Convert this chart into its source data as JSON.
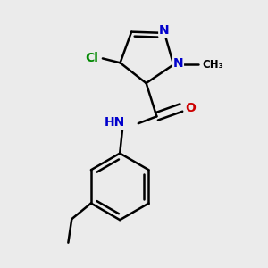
{
  "background_color": "#ebebeb",
  "bond_color": "#000000",
  "bond_width": 1.8,
  "atom_colors": {
    "N": "#0000cc",
    "O": "#cc0000",
    "Cl": "#008800",
    "C": "#000000",
    "H": "#000000"
  },
  "font_size": 10,
  "font_size_small": 8.5
}
